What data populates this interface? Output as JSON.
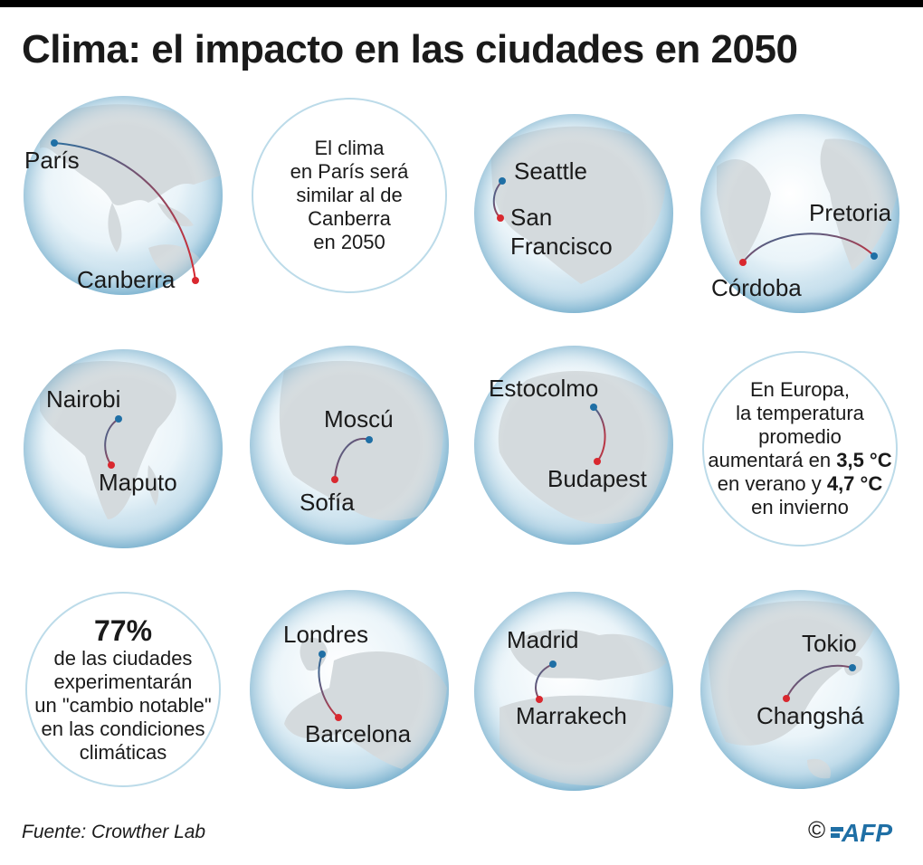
{
  "title": "Clima: el impacto en las ciudades en 2050",
  "cities": {
    "paris": "París",
    "canberra": "Canberra",
    "seattle": "Seattle",
    "san_francisco_1": "San",
    "san_francisco_2": "Francisco",
    "pretoria": "Pretoria",
    "cordoba": "Córdoba",
    "nairobi": "Nairobi",
    "maputo": "Maputo",
    "moscu": "Moscú",
    "sofia": "Sofía",
    "estocolmo": "Estocolmo",
    "budapest": "Budapest",
    "londres": "Londres",
    "barcelona": "Barcelona",
    "madrid": "Madrid",
    "marrakech": "Marrakech",
    "tokio": "Tokio",
    "changsha": "Changshá"
  },
  "info_paris": [
    "El clima",
    "en París será",
    "similar al de",
    "Canberra",
    "en 2050"
  ],
  "info_europe": {
    "l1": "En Europa,",
    "l2": "la temperatura",
    "l3": "promedio",
    "l4_pre": "aumentará en ",
    "l4_bold": "3,5 °C",
    "l5_pre": "en verano y ",
    "l5_bold": "4,7 °C",
    "l6": "en invierno"
  },
  "info_stat": {
    "big": "77%",
    "lines": [
      "de las ciudades",
      "experimentarán",
      "un \"cambio notable\"",
      "en las condiciones",
      "climáticas"
    ]
  },
  "source": "Fuente: Crowther Lab",
  "copyright": "©",
  "logo_text": "AFP",
  "colors": {
    "origin_dot": "#1f6fa5",
    "destination_dot": "#d9282f",
    "globe_edge": "#bcdbe9",
    "land": "#d4dadd"
  }
}
